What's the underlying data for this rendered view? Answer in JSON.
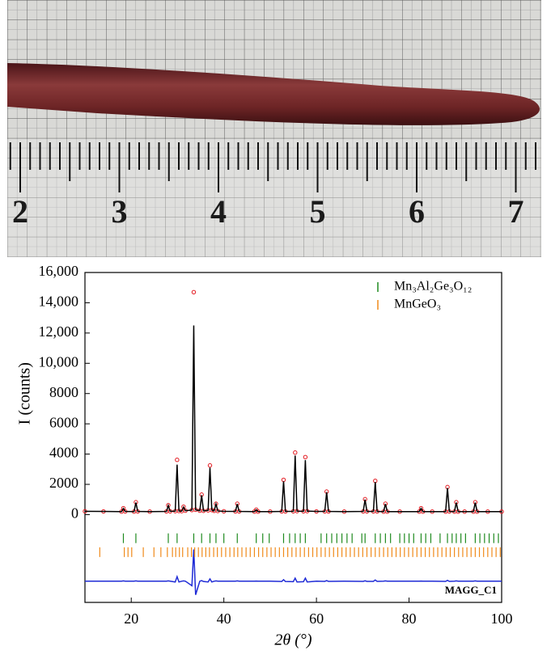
{
  "photo": {
    "ruler_labels": [
      "2",
      "3",
      "4",
      "5",
      "6",
      "7"
    ]
  },
  "chart_data": {
    "type": "line",
    "xlabel": "2θ (°)",
    "ylabel": "I (counts)",
    "annotation": "MAGG_C1",
    "xlim": [
      10,
      100
    ],
    "xticks": [
      20,
      40,
      60,
      80,
      100
    ],
    "ylim": [
      -5800,
      16000
    ],
    "yticks": [
      0,
      2000,
      4000,
      6000,
      8000,
      {
        "value": 10000,
        "label": "10,000"
      },
      {
        "value": 12000,
        "label": "12,000"
      },
      {
        "value": 14000,
        "label": "14,000"
      },
      {
        "value": 16000,
        "label": "16,000"
      }
    ],
    "legend": "upper right",
    "x": [
      10,
      14,
      17.9,
      18.3,
      18.7,
      20.6,
      21,
      21.4,
      24,
      27.6,
      28,
      28.4,
      29.5,
      29.9,
      30.3,
      30.9,
      31.3,
      31.7,
      33.1,
      33.5,
      33.9,
      34.8,
      35.2,
      35.6,
      36.6,
      37,
      37.4,
      37.9,
      38.3,
      38.7,
      40,
      42.5,
      42.9,
      43.3,
      46.6,
      47,
      47.4,
      50,
      52.5,
      52.9,
      53.3,
      55,
      55.4,
      55.8,
      57.2,
      57.6,
      58,
      60,
      61.8,
      62.2,
      62.6,
      66,
      70.1,
      70.5,
      70.9,
      72.3,
      72.7,
      73.1,
      74.5,
      74.9,
      75.3,
      78,
      82.2,
      82.6,
      83,
      85,
      87.9,
      88.3,
      88.7,
      89.8,
      90.2,
      90.6,
      92,
      93.9,
      94.3,
      94.7,
      97,
      100
    ],
    "series": [
      {
        "kind": "observed",
        "color": "#e3171e",
        "marker": "circle",
        "values": [
          220,
          210,
          200,
          420,
          210,
          200,
          820,
          210,
          200,
          210,
          620,
          220,
          230,
          3620,
          240,
          230,
          520,
          260,
          300,
          14700,
          320,
          260,
          1320,
          250,
          280,
          3250,
          300,
          250,
          720,
          240,
          220,
          210,
          720,
          210,
          200,
          330,
          200,
          200,
          210,
          2300,
          210,
          220,
          4100,
          230,
          220,
          3800,
          230,
          210,
          210,
          1520,
          210,
          200,
          210,
          1020,
          210,
          210,
          2230,
          210,
          200,
          720,
          200,
          200,
          200,
          420,
          200,
          200,
          200,
          1820,
          210,
          200,
          820,
          200,
          200,
          200,
          820,
          200,
          200,
          200
        ]
      },
      {
        "kind": "calculated",
        "color": "#000000",
        "marker": "line",
        "values": [
          220,
          210,
          200,
          410,
          210,
          200,
          800,
          210,
          200,
          210,
          600,
          220,
          230,
          3300,
          240,
          230,
          500,
          260,
          300,
          12500,
          320,
          260,
          1280,
          250,
          280,
          3100,
          300,
          250,
          700,
          240,
          220,
          210,
          700,
          210,
          200,
          320,
          200,
          200,
          210,
          2200,
          210,
          220,
          3900,
          230,
          220,
          3600,
          230,
          210,
          210,
          1480,
          210,
          200,
          210,
          990,
          210,
          210,
          2150,
          210,
          200,
          700,
          200,
          200,
          200,
          410,
          200,
          200,
          200,
          1760,
          210,
          200,
          800,
          200,
          200,
          200,
          800,
          200,
          200,
          200
        ]
      },
      {
        "kind": "difference",
        "color": "#1f2bd6",
        "marker": "line",
        "values": [
          -4400,
          -4400,
          -4400,
          -4380,
          -4400,
          -4400,
          -4380,
          -4400,
          -4400,
          -4400,
          -4380,
          -4400,
          -4450,
          -4100,
          -4450,
          -4400,
          -4380,
          -4400,
          -4700,
          -2300,
          -5300,
          -4400,
          -4360,
          -4420,
          -4450,
          -4250,
          -4450,
          -4400,
          -4380,
          -4400,
          -4400,
          -4400,
          -4380,
          -4400,
          -4400,
          -4390,
          -4400,
          -4400,
          -4420,
          -4300,
          -4420,
          -4430,
          -4200,
          -4450,
          -4430,
          -4200,
          -4450,
          -4400,
          -4410,
          -4360,
          -4410,
          -4400,
          -4410,
          -4370,
          -4410,
          -4410,
          -4320,
          -4410,
          -4400,
          -4380,
          -4400,
          -4400,
          -4400,
          -4390,
          -4400,
          -4400,
          -4410,
          -4340,
          -4410,
          -4400,
          -4380,
          -4400,
          -4400,
          -4400,
          -4380,
          -4400,
          -4400,
          -4400
        ]
      },
      {
        "name": "Mn₃Al₂Ge₃O₁₂",
        "color": "#1f8a1f",
        "marker": "tick",
        "y": -1560,
        "x": [
          18.3,
          21,
          28,
          29.9,
          33.5,
          35.2,
          37,
          38.3,
          40,
          42.9,
          47,
          48.4,
          49.8,
          52.9,
          54.2,
          55.4,
          56.5,
          57.6,
          61,
          62.2,
          63.3,
          64.4,
          65.5,
          66.6,
          67.7,
          69.8,
          70.5,
          72.7,
          73.8,
          74.9,
          76,
          78,
          79,
          80,
          81,
          82.6,
          83.6,
          84.7,
          86.7,
          88.3,
          89.3,
          90.2,
          91.2,
          92.2,
          94.3,
          95.3,
          96.3,
          97.3,
          98.3,
          99.3
        ]
      },
      {
        "name": "MnGeO₃",
        "color": "#f08a1a",
        "marker": "tick",
        "y": -2480,
        "x": [
          13.2,
          18.5,
          19.3,
          20.1,
          22.6,
          24.9,
          26.4,
          27.8,
          28.9,
          29.6,
          30.4,
          31.1,
          32.2,
          33,
          33.7,
          34.5,
          35.3,
          36.1,
          36.9,
          37.8,
          38.6,
          39.5,
          40.4,
          41.3,
          42.2,
          43,
          43.9,
          44.8,
          45.7,
          46.6,
          47.5,
          48.4,
          49.3,
          50.2,
          51.1,
          52,
          52.9,
          53.8,
          54.7,
          55.6,
          56.5,
          57.4,
          58.3,
          59.2,
          60.1,
          61,
          61.9,
          62.8,
          63.7,
          64.6,
          65.5,
          66.4,
          67.3,
          68.2,
          69.1,
          70,
          70.9,
          71.8,
          72.7,
          73.6,
          74.5,
          75.4,
          76.3,
          77.2,
          78.1,
          79,
          79.9,
          80.8,
          81.7,
          82.6,
          83.5,
          84.4,
          85.3,
          86.2,
          87.1,
          88,
          88.9,
          89.8,
          90.7,
          91.6,
          92.5,
          93.4,
          94.3,
          95.2,
          96.1,
          97,
          97.9,
          98.8,
          99.7
        ]
      }
    ]
  }
}
